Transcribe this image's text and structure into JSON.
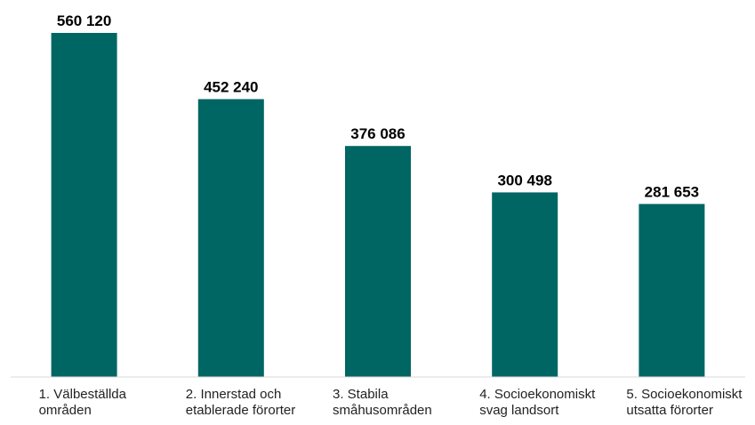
{
  "chart_data": {
    "type": "bar",
    "title": "",
    "xlabel": "",
    "ylabel": "",
    "categories": [
      "1. Välbeställda områden",
      "2. Innerstad och etablerade förorter",
      "3. Stabila småhusområden",
      "4. Socioekonomiskt svag landsort",
      "5. Socioekonomiskt utsatta förorter"
    ],
    "category_lines": [
      [
        "1. Välbeställda",
        "områden"
      ],
      [
        "2. Innerstad och",
        "etablerade förorter"
      ],
      [
        "3. Stabila",
        "småhusområden"
      ],
      [
        "4. Socioekonomiskt",
        "svag landsort"
      ],
      [
        "5. Socioekonomiskt",
        "utsatta förorter"
      ]
    ],
    "values": [
      560120,
      452240,
      376086,
      300498,
      281653
    ],
    "value_labels": [
      "560 120",
      "452 240",
      "376 086",
      "300 498",
      "281 653"
    ],
    "ylim": [
      0,
      560120
    ],
    "grid": false,
    "legend": "none",
    "colors": {
      "bar": "#006663",
      "axis": "#d9d9d9",
      "value_text": "#000000",
      "category_text": "#222222"
    }
  }
}
